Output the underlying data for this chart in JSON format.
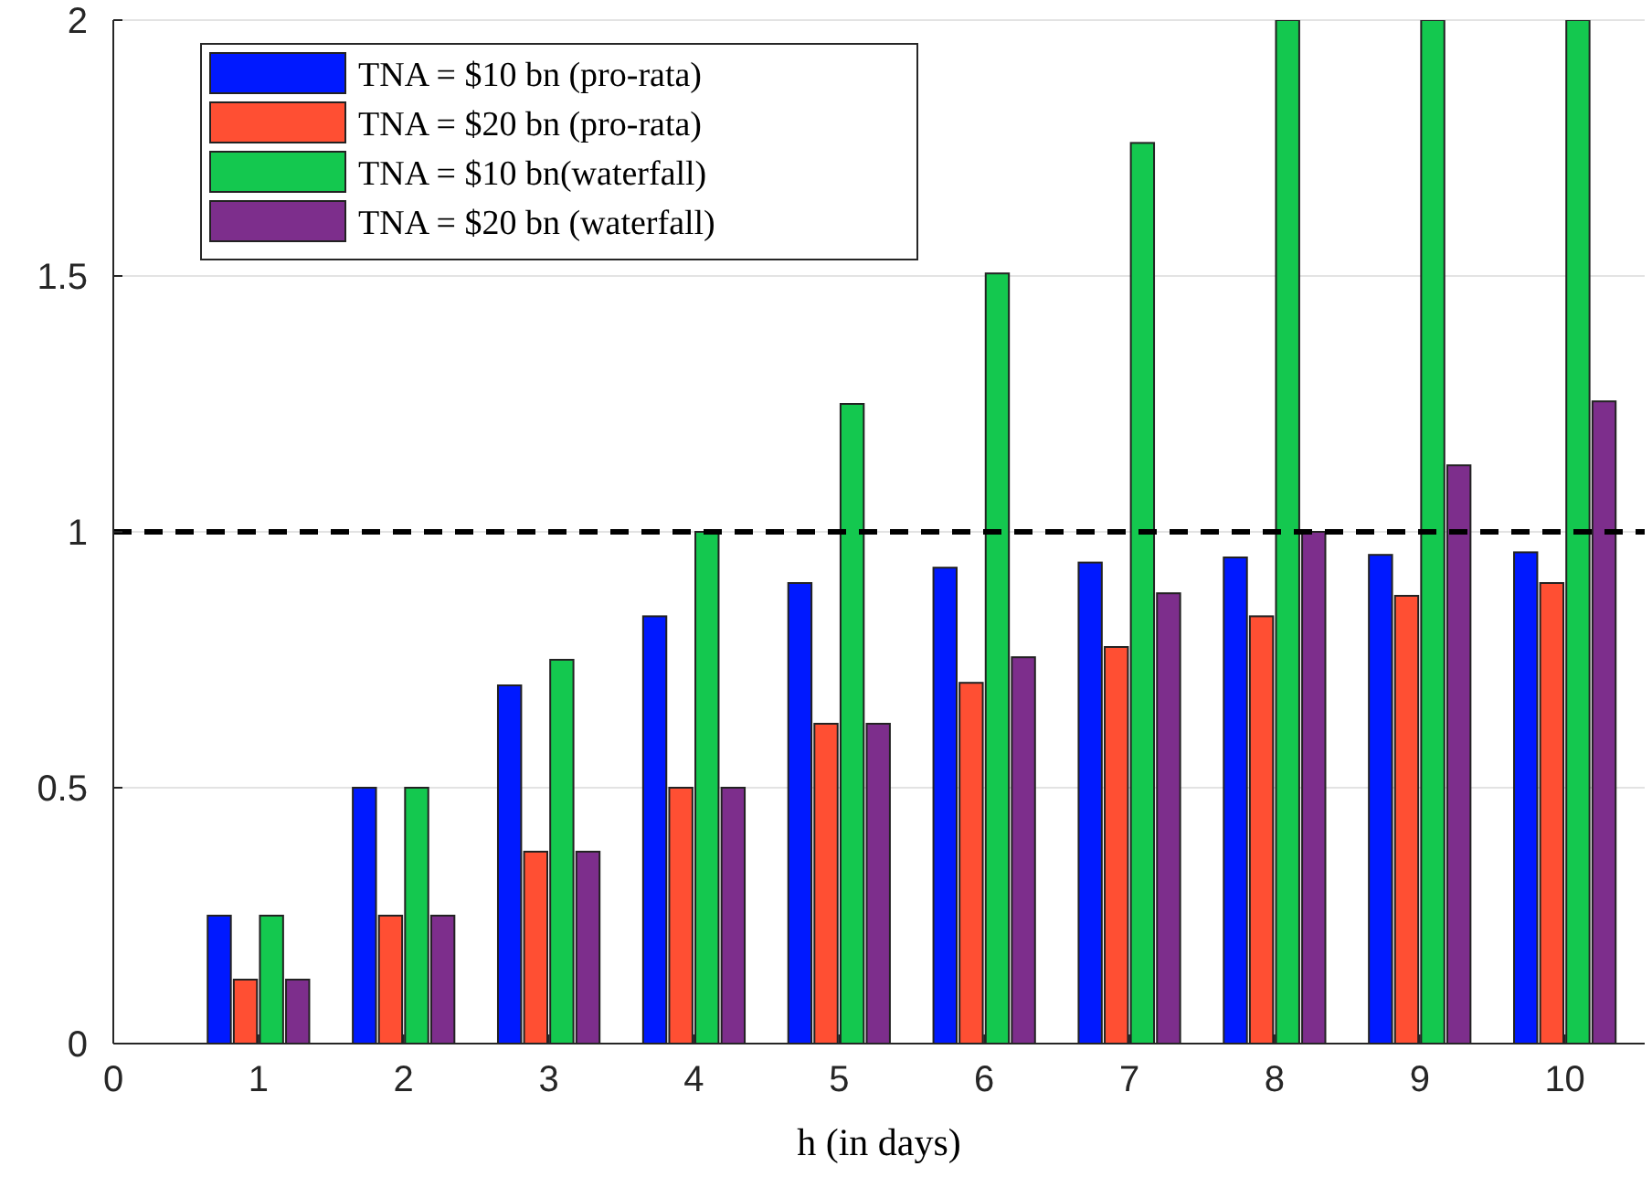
{
  "chart_data": {
    "type": "bar",
    "xlabel": "h (in days)",
    "x": [
      1,
      2,
      3,
      4,
      5,
      6,
      7,
      8,
      9,
      10
    ],
    "series": [
      {
        "name": "TNA = $10 bn (pro-rata)",
        "color": "#0019ff",
        "values": [
          0.25,
          0.5,
          0.7,
          0.835,
          0.9,
          0.93,
          0.94,
          0.95,
          0.955,
          0.96
        ]
      },
      {
        "name": "TNA = $20 bn (pro-rata)",
        "color": "#ff4f33",
        "values": [
          0.125,
          0.25,
          0.375,
          0.5,
          0.625,
          0.705,
          0.775,
          0.835,
          0.875,
          0.9
        ]
      },
      {
        "name": "TNA = $10 bn(waterfall)",
        "color": "#14c84f",
        "values": [
          0.25,
          0.5,
          0.75,
          1.0,
          1.25,
          1.505,
          1.76,
          2,
          2,
          2
        ]
      },
      {
        "name": "TNA = $20 bn (waterfall)",
        "color": "#7d2e8c",
        "values": [
          0.125,
          0.25,
          0.375,
          0.5,
          0.625,
          0.755,
          0.88,
          1.0,
          1.13,
          1.255
        ]
      }
    ],
    "xlim": [
      0,
      10.55
    ],
    "xticks": [
      0,
      1,
      2,
      3,
      4,
      5,
      6,
      7,
      8,
      9,
      10
    ],
    "ylim": [
      0,
      2
    ],
    "yticks": [
      0,
      0.5,
      1,
      1.5,
      2
    ],
    "grid": "y",
    "legend": "top left",
    "ref_lines": [
      {
        "axis": "y",
        "value": 1,
        "color": "#000000",
        "line_style": "dashed"
      }
    ]
  }
}
